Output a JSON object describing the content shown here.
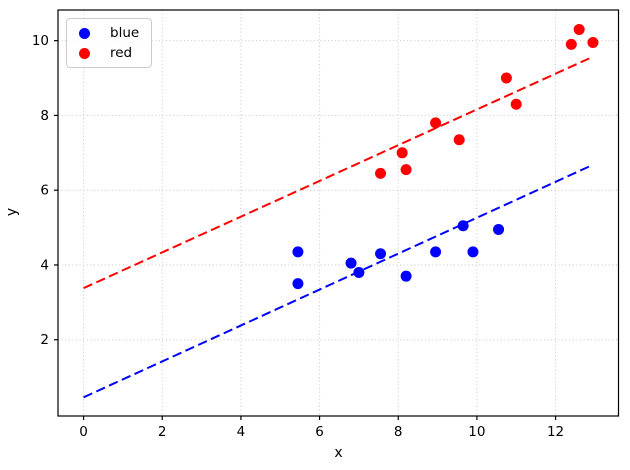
{
  "chart_data": {
    "type": "scatter",
    "xlabel": "x",
    "ylabel": "y",
    "xlim": [
      -0.65,
      13.6
    ],
    "ylim": [
      -0.04,
      10.82
    ],
    "xticks": [
      0,
      2,
      4,
      6,
      8,
      10,
      12
    ],
    "yticks": [
      2,
      4,
      6,
      8,
      10
    ],
    "grid": true,
    "grid_style": "dotted",
    "legend": {
      "position": "upper-left"
    },
    "series": [
      {
        "name": "blue",
        "color": "#0000ff",
        "marker": "circle",
        "points": [
          [
            5.45,
            4.35
          ],
          [
            5.45,
            3.5
          ],
          [
            6.8,
            4.05
          ],
          [
            7.0,
            3.8
          ],
          [
            7.55,
            4.3
          ],
          [
            8.2,
            3.7
          ],
          [
            8.95,
            4.35
          ],
          [
            9.65,
            5.05
          ],
          [
            9.9,
            4.35
          ],
          [
            10.55,
            4.95
          ]
        ],
        "trendline": {
          "style": "dashed",
          "x": [
            0,
            12.95
          ],
          "y": [
            0.46,
            6.68
          ]
        }
      },
      {
        "name": "red",
        "color": "#ff0000",
        "marker": "circle",
        "points": [
          [
            7.55,
            6.45
          ],
          [
            8.1,
            7.0
          ],
          [
            8.2,
            6.55
          ],
          [
            8.95,
            7.8
          ],
          [
            9.55,
            7.35
          ],
          [
            10.75,
            9.0
          ],
          [
            11.0,
            8.3
          ],
          [
            12.4,
            9.9
          ],
          [
            12.6,
            10.3
          ],
          [
            12.95,
            9.95
          ]
        ],
        "trendline": {
          "style": "dashed",
          "x": [
            0,
            12.95
          ],
          "y": [
            3.38,
            9.57
          ]
        }
      }
    ]
  }
}
